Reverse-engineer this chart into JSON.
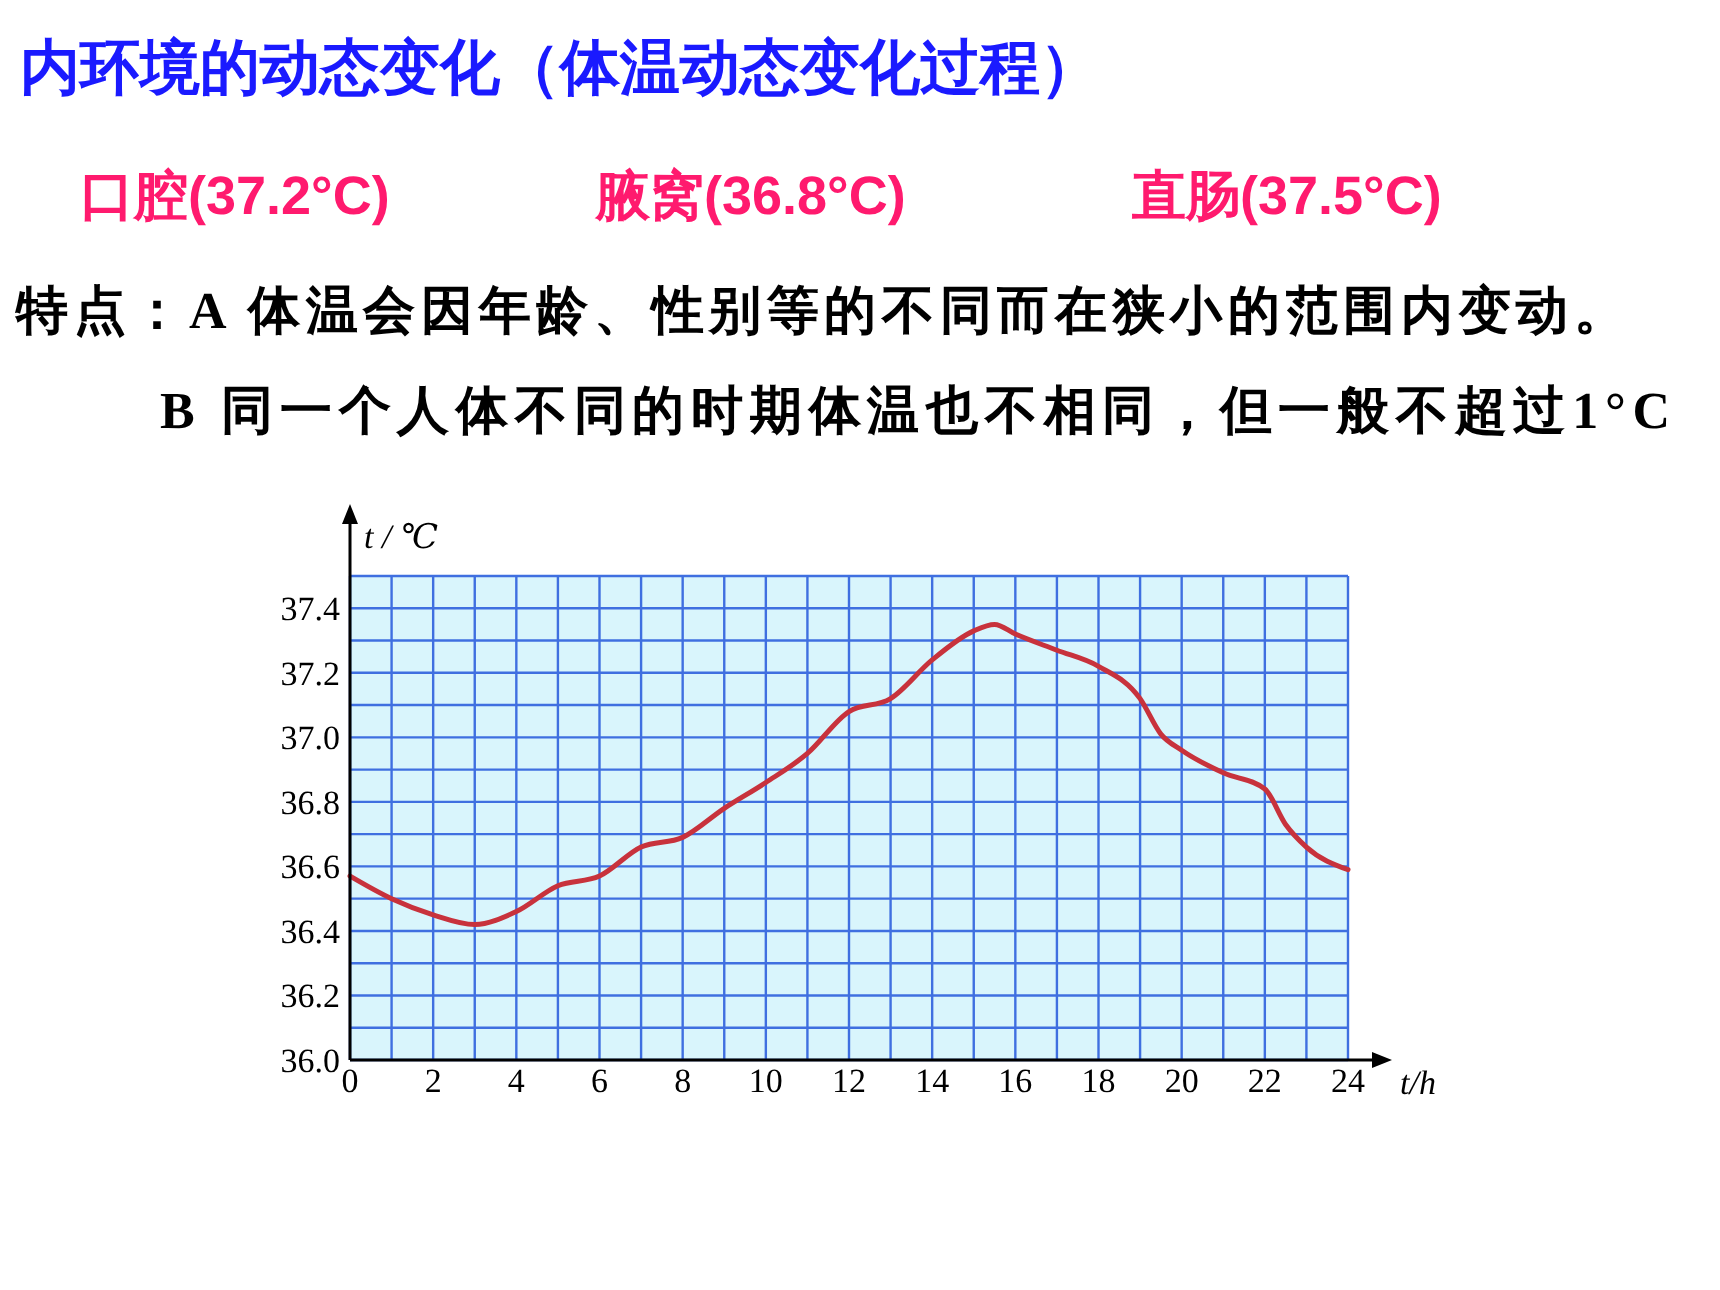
{
  "chart_data": {
    "type": "line",
    "title": "内环境的动态变化（体温动态变化过程）",
    "annotations": [
      "口腔(37.2°C)",
      "腋窝(36.8°C)",
      "直肠(37.5°C)",
      "特点：A 体温会因年龄、性别等的不同而在狭小的范围内变动。",
      "B  同一个人体不同的时期体温也不相同，但一般不超过1°C"
    ],
    "xlabel": "t/h",
    "ylabel": "t / ℃",
    "x": [
      0,
      1,
      2,
      3,
      4,
      5,
      6,
      7,
      8,
      9,
      10,
      11,
      12,
      13,
      14,
      15,
      15.5,
      16,
      17,
      18,
      19,
      19.5,
      20,
      21,
      22,
      22.5,
      23,
      24
    ],
    "series": [
      {
        "color": "#c8323c",
        "values": [
          36.57,
          36.5,
          36.45,
          36.42,
          36.46,
          36.54,
          36.57,
          36.66,
          36.69,
          36.78,
          36.86,
          36.95,
          37.08,
          37.12,
          37.24,
          37.33,
          37.35,
          37.32,
          37.27,
          37.22,
          37.12,
          37.01,
          36.96,
          36.89,
          36.84,
          36.73,
          36.66,
          36.59
        ]
      }
    ],
    "xlim": [
      0,
      24
    ],
    "ylim": [
      36,
      37.5
    ],
    "xticks": [
      0,
      2,
      4,
      6,
      8,
      10,
      12,
      14,
      16,
      18,
      20,
      22,
      24
    ],
    "yticks": [
      {
        "value": 36,
        "label": "36.0"
      },
      {
        "value": 36.2,
        "label": "36.2"
      },
      {
        "value": 36.4,
        "label": "36.4"
      },
      {
        "value": 36.6,
        "label": "36.6"
      },
      {
        "value": 36.8,
        "label": "36.8"
      },
      {
        "value": 37,
        "label": "37.0"
      },
      {
        "value": 37.2,
        "label": "37.2"
      },
      {
        "value": 37.4,
        "label": "37.4"
      }
    ],
    "grid": true,
    "marker": "none",
    "line_style": "solid"
  }
}
